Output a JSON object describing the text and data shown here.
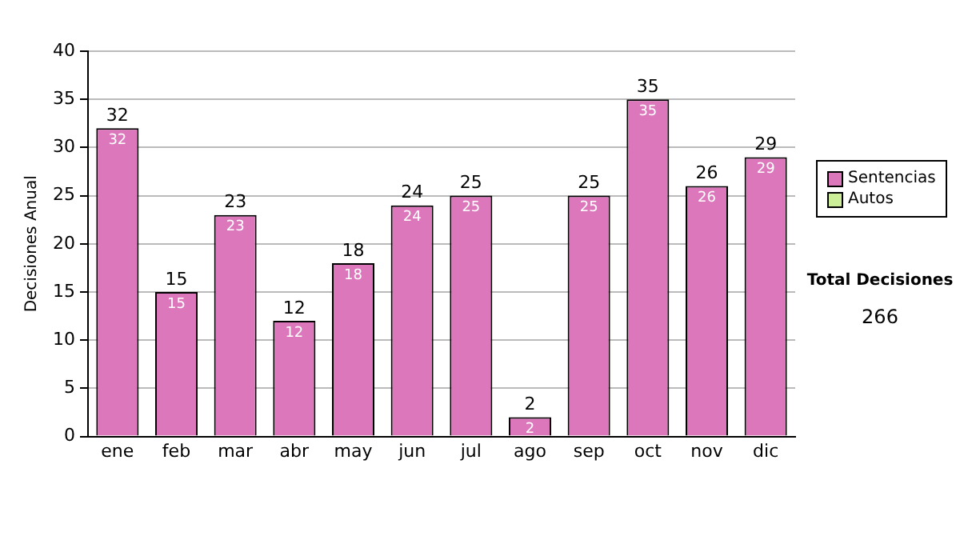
{
  "chart_data": {
    "type": "bar",
    "stacked": true,
    "ylabel": "Decisiones Anual",
    "categories": [
      "ene",
      "feb",
      "mar",
      "abr",
      "may",
      "jun",
      "jul",
      "ago",
      "sep",
      "oct",
      "nov",
      "dic"
    ],
    "series": [
      {
        "name": "Sentencias",
        "color": "#dd77bb",
        "values": [
          32,
          15,
          23,
          12,
          18,
          24,
          25,
          2,
          25,
          35,
          26,
          29
        ],
        "value_labels": [
          "32",
          "15",
          "23",
          "12",
          "18",
          "24",
          "25",
          "2",
          "25",
          "35",
          "26",
          "29"
        ]
      },
      {
        "name": "Autos",
        "color": "#ccee99",
        "values": [
          0,
          0,
          0,
          0,
          0,
          0,
          0,
          0,
          0,
          0,
          0,
          0
        ]
      }
    ],
    "totals": [
      "32",
      "15",
      "23",
      "12",
      "18",
      "24",
      "25",
      "2",
      "25",
      "35",
      "26",
      "29"
    ],
    "ylim": [
      0,
      40
    ],
    "yticks": [
      0,
      5,
      10,
      15,
      20,
      25,
      30,
      35,
      40
    ],
    "grid": "y",
    "legend": "right",
    "annotations": [
      "Total Decisiones",
      "266"
    ]
  }
}
